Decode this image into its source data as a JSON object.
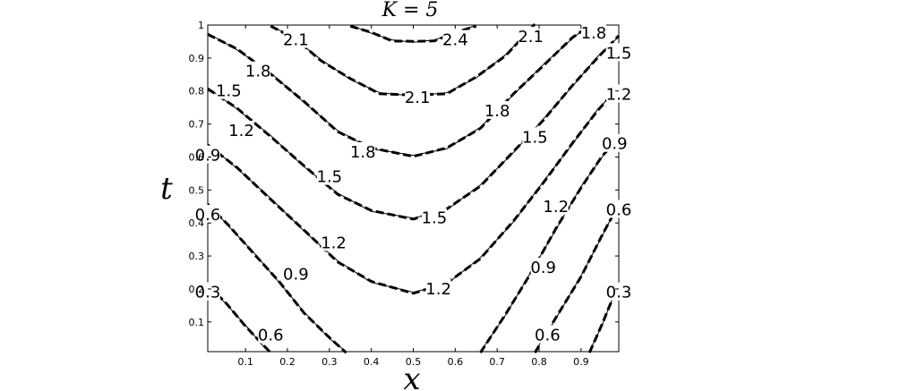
{
  "chart_data": {
    "type": "contour",
    "title": "K = 5",
    "xlabel": "x",
    "ylabel": "t",
    "xlim": [
      0.01,
      0.99
    ],
    "ylim": [
      0.01,
      1.0
    ],
    "x_ticks": [
      "0.1",
      "0.2",
      "0.3",
      "0.4",
      "0.5",
      "0.6",
      "0.7",
      "0.8",
      "0.9"
    ],
    "y_ticks": [
      "0.1",
      "0.2",
      "0.3",
      "0.4",
      "0.5",
      "0.6",
      "0.7",
      "0.8",
      "0.9",
      "1"
    ],
    "grid": false,
    "series": [
      {
        "style": "solid thin"
      },
      {
        "style": "dashed thick"
      }
    ],
    "contours": [
      {
        "level": "2.4",
        "points": [
          [
            0.35,
            1.0
          ],
          [
            0.4,
            0.975
          ],
          [
            0.45,
            0.955
          ],
          [
            0.5,
            0.948
          ],
          [
            0.55,
            0.955
          ],
          [
            0.6,
            0.975
          ],
          [
            0.65,
            1.0
          ]
        ]
      },
      {
        "level": "2.1",
        "points": [
          [
            0.16,
            1.0
          ],
          [
            0.22,
            0.955
          ],
          [
            0.28,
            0.895
          ],
          [
            0.35,
            0.835
          ],
          [
            0.42,
            0.795
          ],
          [
            0.5,
            0.785
          ],
          [
            0.58,
            0.795
          ],
          [
            0.65,
            0.84
          ],
          [
            0.72,
            0.91
          ],
          [
            0.79,
            1.0
          ]
        ]
      },
      {
        "level": "1.8",
        "points": [
          [
            0.01,
            0.975
          ],
          [
            0.08,
            0.925
          ],
          [
            0.16,
            0.855
          ],
          [
            0.24,
            0.765
          ],
          [
            0.32,
            0.68
          ],
          [
            0.4,
            0.625
          ],
          [
            0.5,
            0.605
          ],
          [
            0.58,
            0.625
          ],
          [
            0.66,
            0.69
          ],
          [
            0.74,
            0.79
          ],
          [
            0.81,
            0.88
          ],
          [
            0.88,
            0.96
          ],
          [
            0.92,
            1.0
          ]
        ]
      },
      {
        "level": "1.5",
        "points": [
          [
            0.01,
            0.81
          ],
          [
            0.08,
            0.745
          ],
          [
            0.16,
            0.665
          ],
          [
            0.24,
            0.57
          ],
          [
            0.32,
            0.49
          ],
          [
            0.4,
            0.435
          ],
          [
            0.5,
            0.415
          ],
          [
            0.58,
            0.44
          ],
          [
            0.66,
            0.515
          ],
          [
            0.74,
            0.615
          ],
          [
            0.81,
            0.715
          ],
          [
            0.88,
            0.815
          ],
          [
            0.94,
            0.905
          ],
          [
            0.99,
            0.965
          ]
        ]
      },
      {
        "level": "1.2",
        "points": [
          [
            0.01,
            0.64
          ],
          [
            0.08,
            0.565
          ],
          [
            0.16,
            0.475
          ],
          [
            0.24,
            0.375
          ],
          [
            0.32,
            0.285
          ],
          [
            0.4,
            0.22
          ],
          [
            0.5,
            0.19
          ],
          [
            0.58,
            0.215
          ],
          [
            0.66,
            0.295
          ],
          [
            0.74,
            0.405
          ],
          [
            0.81,
            0.525
          ],
          [
            0.88,
            0.64
          ],
          [
            0.94,
            0.745
          ],
          [
            0.99,
            0.81
          ]
        ]
      },
      {
        "level": "0.9",
        "points": [
          [
            0.01,
            0.46
          ],
          [
            0.06,
            0.39
          ],
          [
            0.12,
            0.31
          ],
          [
            0.18,
            0.22
          ],
          [
            0.24,
            0.13
          ],
          [
            0.3,
            0.05
          ],
          [
            0.34,
            0.01
          ]
        ]
      },
      {
        "level": "0.9",
        "points": [
          [
            0.66,
            0.01
          ],
          [
            0.72,
            0.12
          ],
          [
            0.78,
            0.25
          ],
          [
            0.84,
            0.38
          ],
          [
            0.9,
            0.51
          ],
          [
            0.95,
            0.6
          ],
          [
            0.99,
            0.66
          ]
        ]
      },
      {
        "level": "0.6",
        "points": [
          [
            0.01,
            0.21
          ],
          [
            0.05,
            0.16
          ],
          [
            0.1,
            0.09
          ],
          [
            0.14,
            0.03
          ],
          [
            0.16,
            0.01
          ]
        ]
      },
      {
        "level": "0.6",
        "points": [
          [
            0.79,
            0.01
          ],
          [
            0.84,
            0.11
          ],
          [
            0.9,
            0.24
          ],
          [
            0.95,
            0.36
          ],
          [
            0.99,
            0.46
          ]
        ]
      },
      {
        "level": "0.3",
        "points": [
          [
            0.92,
            0.01
          ],
          [
            0.95,
            0.09
          ],
          [
            0.99,
            0.22
          ]
        ]
      }
    ],
    "labels": [
      {
        "text": "2.4",
        "x": 0.6,
        "y": 0.955
      },
      {
        "text": "2.1",
        "x": 0.22,
        "y": 0.955
      },
      {
        "text": "2.1",
        "x": 0.51,
        "y": 0.78
      },
      {
        "text": "2.1",
        "x": 0.78,
        "y": 0.965
      },
      {
        "text": "1.8",
        "x": 0.13,
        "y": 0.86
      },
      {
        "text": "1.8",
        "x": 0.38,
        "y": 0.615
      },
      {
        "text": "1.8",
        "x": 0.7,
        "y": 0.74
      },
      {
        "text": "1.8",
        "x": 0.93,
        "y": 0.975
      },
      {
        "text": "1.5",
        "x": 0.06,
        "y": 0.8
      },
      {
        "text": "1.5",
        "x": 0.3,
        "y": 0.54
      },
      {
        "text": "1.5",
        "x": 0.55,
        "y": 0.415
      },
      {
        "text": "1.5",
        "x": 0.79,
        "y": 0.66
      },
      {
        "text": "1.5",
        "x": 0.99,
        "y": 0.915
      },
      {
        "text": "1.2",
        "x": 0.09,
        "y": 0.68
      },
      {
        "text": "1.2",
        "x": 0.31,
        "y": 0.34
      },
      {
        "text": "1.2",
        "x": 0.56,
        "y": 0.2
      },
      {
        "text": "1.2",
        "x": 0.84,
        "y": 0.45
      },
      {
        "text": "1.2",
        "x": 0.99,
        "y": 0.79
      },
      {
        "text": "0.9",
        "x": 0.01,
        "y": 0.605
      },
      {
        "text": "0.9",
        "x": 0.22,
        "y": 0.245
      },
      {
        "text": "0.9",
        "x": 0.81,
        "y": 0.265
      },
      {
        "text": "0.9",
        "x": 0.98,
        "y": 0.64
      },
      {
        "text": "0.6",
        "x": 0.01,
        "y": 0.425
      },
      {
        "text": "0.6",
        "x": 0.16,
        "y": 0.06
      },
      {
        "text": "0.6",
        "x": 0.82,
        "y": 0.06
      },
      {
        "text": "0.6",
        "x": 0.99,
        "y": 0.44
      },
      {
        "text": "0.3",
        "x": 0.01,
        "y": 0.19
      },
      {
        "text": "0.3",
        "x": 0.99,
        "y": 0.19
      }
    ]
  }
}
